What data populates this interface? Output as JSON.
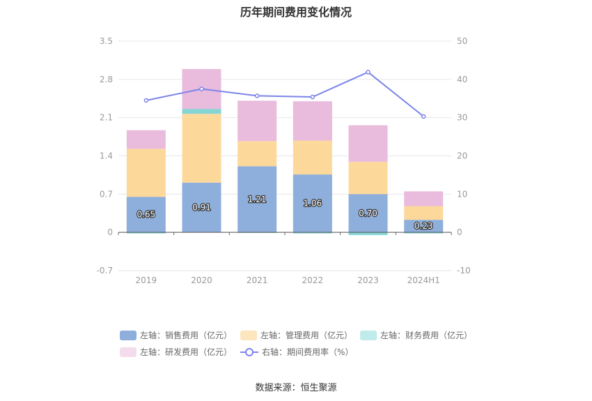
{
  "title": "历年期间费用变化情况",
  "source": "数据来源：恒生聚源",
  "chart_data": {
    "type": "bar",
    "stacked": true,
    "categories": [
      "2019",
      "2020",
      "2021",
      "2022",
      "2023",
      "2024H1"
    ],
    "left_axis": {
      "ylim": [
        -0.7,
        3.5
      ],
      "ticks": [
        "-0.7",
        "0",
        "0.7",
        "1.4",
        "2.1",
        "2.8",
        "3.5"
      ]
    },
    "right_axis": {
      "ylim": [
        -10,
        50
      ],
      "ticks": [
        "-10",
        "0",
        "10",
        "20",
        "30",
        "40",
        "50"
      ]
    },
    "series": [
      {
        "name": "左轴：销售费用（亿元）",
        "axis": "left",
        "color": "#8eaedb",
        "values": [
          0.65,
          0.91,
          1.21,
          1.06,
          0.7,
          0.23
        ],
        "labels": [
          "0.65",
          "0.91",
          "1.21",
          "1.06",
          "0.70",
          "0.23"
        ]
      },
      {
        "name": "左轴：管理费用（亿元）",
        "axis": "left",
        "color": "#fdd89b",
        "values": [
          0.88,
          1.26,
          0.46,
          0.62,
          0.59,
          0.25
        ]
      },
      {
        "name": "左轴：财务费用（亿元）",
        "axis": "left",
        "color": "#86d5d5",
        "values": [
          -0.02,
          0.09,
          -0.01,
          -0.02,
          -0.05,
          -0.02
        ]
      },
      {
        "name": "左轴：研发费用（亿元）",
        "axis": "left",
        "color": "#e9bbdc",
        "values": [
          0.34,
          0.73,
          0.74,
          0.72,
          0.67,
          0.27
        ]
      },
      {
        "name": "右轴：期间费用率（%）",
        "axis": "right",
        "type": "line",
        "color": "#7b83ea",
        "values": [
          34.5,
          37.5,
          35.7,
          35.4,
          41.9,
          30.3
        ]
      }
    ],
    "grid": true,
    "legend_position": "bottom"
  }
}
